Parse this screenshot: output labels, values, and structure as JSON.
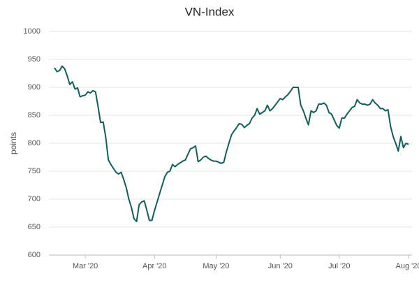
{
  "chart_data": {
    "type": "line",
    "title": "VN-Index",
    "y_label": "points",
    "categories": [
      null,
      null,
      null,
      null,
      null,
      null,
      null,
      null,
      null,
      null,
      null,
      null,
      "Mar '20",
      null,
      null,
      null,
      null,
      null,
      null,
      null,
      null,
      null,
      null,
      null,
      null,
      null,
      null,
      null,
      null,
      null,
      null,
      null,
      null,
      null,
      null,
      null,
      null,
      null,
      null,
      "Apr '20",
      null,
      null,
      null,
      null,
      null,
      null,
      null,
      null,
      null,
      null,
      null,
      null,
      null,
      null,
      null,
      null,
      null,
      null,
      null,
      null,
      null,
      null,
      null,
      "May '20",
      null,
      null,
      null,
      null,
      null,
      null,
      null,
      null,
      null,
      null,
      null,
      null,
      null,
      null,
      null,
      null,
      null,
      null,
      null,
      null,
      null,
      null,
      null,
      null,
      "Jun '20",
      null,
      null,
      null,
      null,
      null,
      null,
      null,
      null,
      null,
      null,
      null,
      null,
      null,
      null,
      null,
      null,
      null,
      null,
      null,
      null,
      null,
      null,
      "Jul '20",
      null,
      null,
      null,
      null,
      null,
      null,
      null,
      null,
      null,
      null,
      null,
      null,
      null,
      null,
      null,
      null,
      null,
      null,
      null,
      null,
      null,
      null,
      null,
      null,
      null,
      null,
      "Aug '20"
    ],
    "series": [
      {
        "name": "VN-Index",
        "color": "#0f5f5c",
        "values": [
          935,
          928,
          930,
          938,
          933,
          920,
          905,
          910,
          897,
          899,
          883,
          885,
          886,
          892,
          890,
          894,
          892,
          865,
          837,
          838,
          810,
          770,
          762,
          755,
          748,
          745,
          748,
          735,
          720,
          700,
          685,
          665,
          660,
          690,
          695,
          697,
          680,
          662,
          662,
          680,
          695,
          710,
          725,
          740,
          748,
          750,
          762,
          758,
          762,
          765,
          768,
          770,
          780,
          790,
          792,
          795,
          767,
          770,
          775,
          777,
          773,
          770,
          768,
          768,
          766,
          764,
          766,
          785,
          800,
          815,
          822,
          828,
          835,
          834,
          828,
          832,
          835,
          845,
          850,
          862,
          852,
          855,
          858,
          868,
          858,
          862,
          868,
          874,
          880,
          878,
          883,
          887,
          893,
          900,
          900,
          900,
          868,
          858,
          845,
          833,
          858,
          855,
          858,
          870,
          870,
          872,
          868,
          855,
          852,
          842,
          832,
          827,
          845,
          845,
          852,
          858,
          864,
          866,
          878,
          872,
          870,
          870,
          868,
          870,
          878,
          872,
          868,
          862,
          862,
          858,
          860,
          830,
          812,
          800,
          786,
          812,
          792,
          800,
          798
        ]
      }
    ],
    "ylim": [
      600,
      1000
    ],
    "yticks": [
      600,
      650,
      700,
      750,
      800,
      850,
      900,
      950,
      1000
    ],
    "grid": true
  }
}
